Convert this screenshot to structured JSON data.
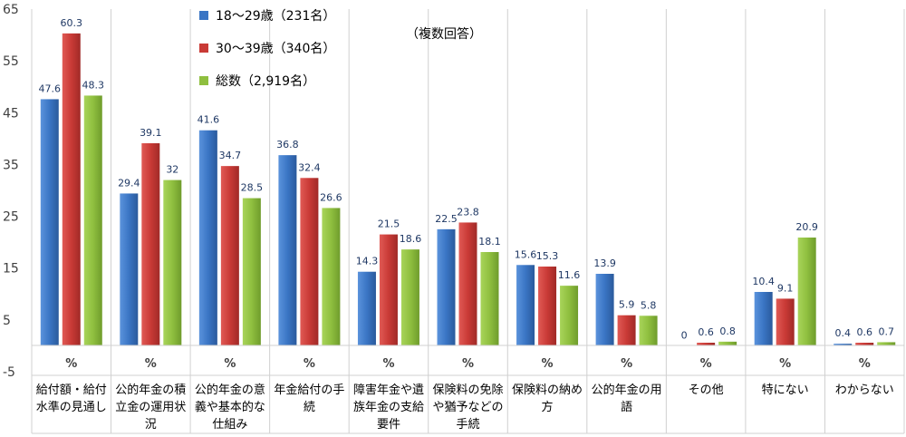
{
  "chart_data": {
    "type": "bar",
    "note": "（複数回答）",
    "unit_label": "%",
    "ylim": [
      -5,
      65
    ],
    "yticks": [
      -5,
      5,
      15,
      25,
      35,
      45,
      55,
      65
    ],
    "legend_position": "top-left",
    "grid": "vertical category separators",
    "categories": [
      [
        "給付額・給付",
        "水準の見通し"
      ],
      [
        "公的年金の積",
        "立金の運用状",
        "況"
      ],
      [
        "公的年金の意",
        "義や基本的な",
        "仕組み"
      ],
      [
        "年金給付の手",
        "続"
      ],
      [
        "障害年金や遺",
        "族年金の支給",
        "要件"
      ],
      [
        "保険料の免除",
        "や猶予などの",
        "手続"
      ],
      [
        "保険料の納め",
        "方"
      ],
      [
        "公的年金の用",
        "語"
      ],
      [
        "その他"
      ],
      [
        "特にない"
      ],
      [
        "わからない"
      ]
    ],
    "series": [
      {
        "name": "18～29歳（231名）",
        "color": "#3a75c4",
        "values": [
          47.6,
          29.4,
          41.6,
          36.8,
          14.3,
          22.5,
          15.6,
          13.9,
          0,
          10.4,
          0.4
        ]
      },
      {
        "name": "30～39歳（340名）",
        "color": "#c93a36",
        "values": [
          60.3,
          39.1,
          34.7,
          32.4,
          21.5,
          23.8,
          15.3,
          5.9,
          0.6,
          9.1,
          0.6
        ]
      },
      {
        "name": "総数（2,919名）",
        "color": "#8fbf3f",
        "values": [
          48.3,
          32,
          28.5,
          26.6,
          18.6,
          18.1,
          11.6,
          5.8,
          0.8,
          20.9,
          0.7
        ]
      }
    ]
  }
}
